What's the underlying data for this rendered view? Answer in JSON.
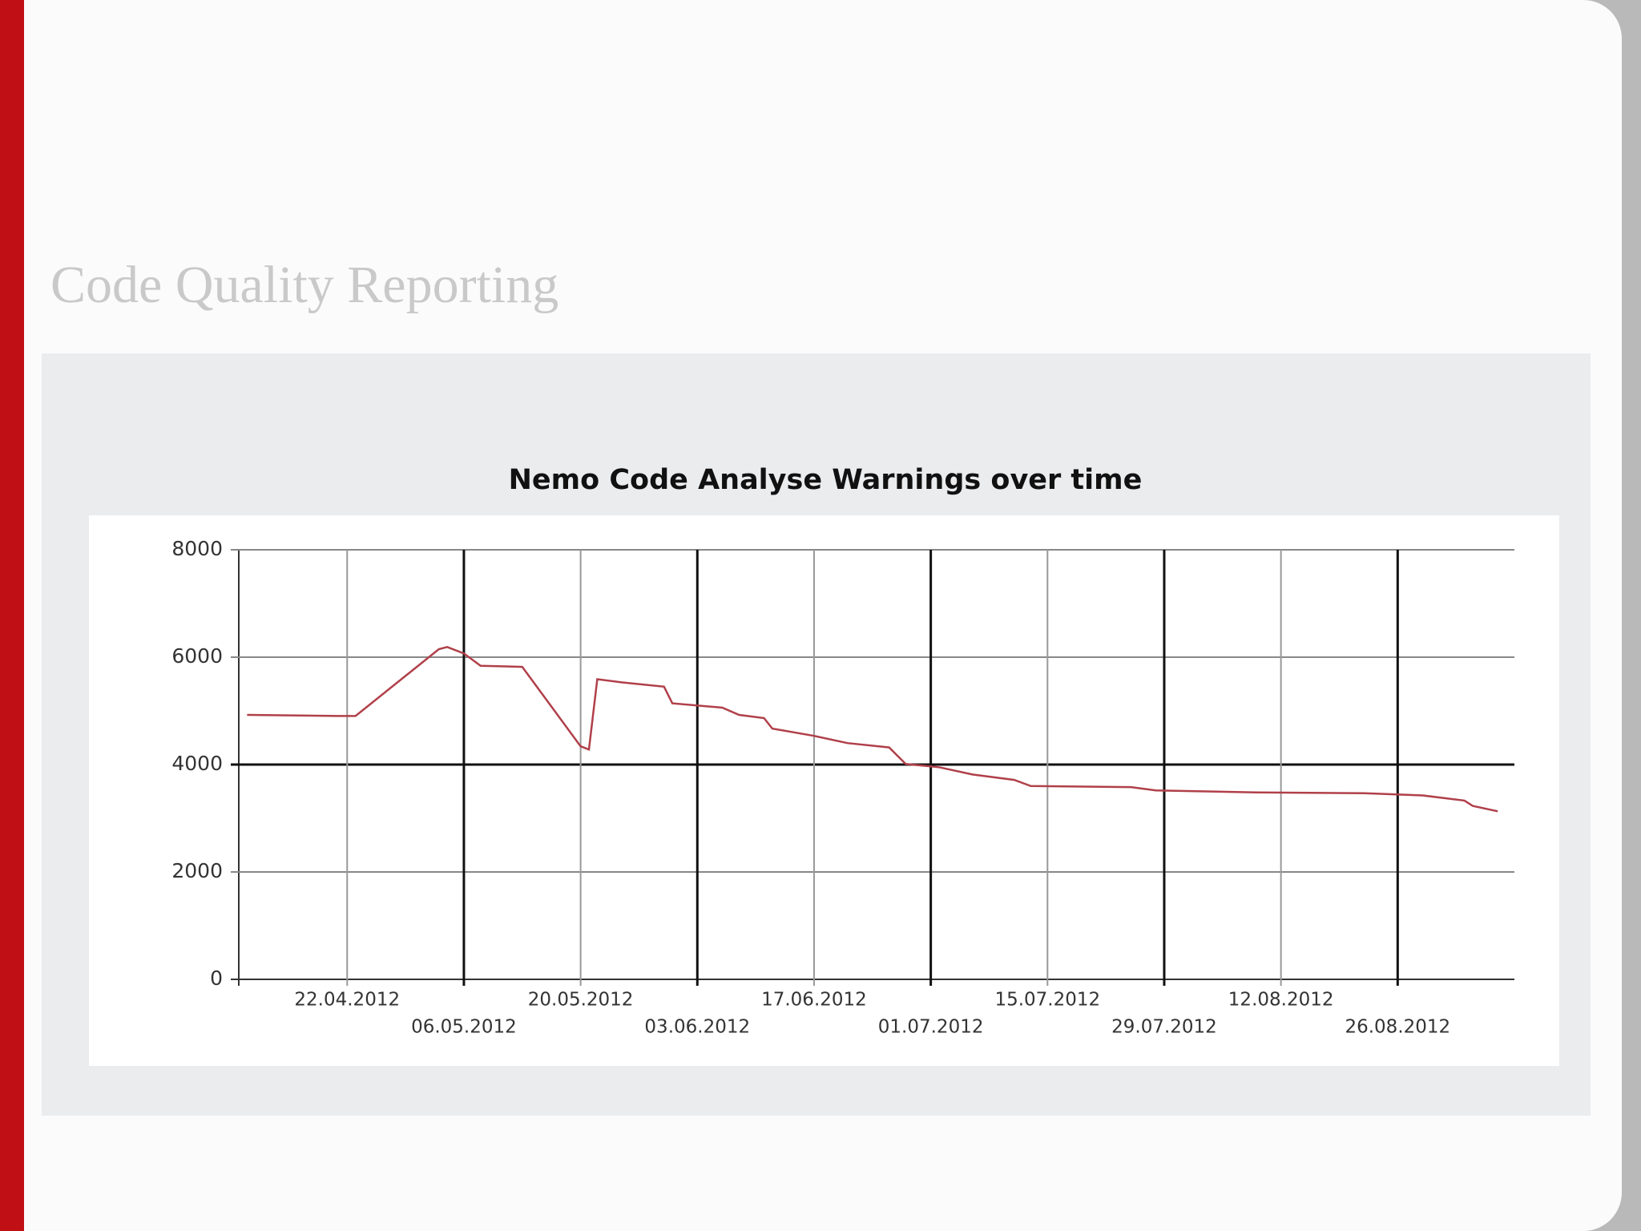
{
  "slide_title": "Code Quality Reporting",
  "chart_data": {
    "type": "line",
    "title": "Nemo Code Analyse Warnings over time",
    "x": [
      "10.04.2012",
      "21.04.2012",
      "23.04.2012",
      "03.05.2012",
      "04.05.2012",
      "06.05.2012",
      "08.05.2012",
      "13.05.2012",
      "20.05.2012",
      "21.05.2012",
      "22.05.2012",
      "25.05.2012",
      "30.05.2012",
      "31.05.2012",
      "06.06.2012",
      "08.06.2012",
      "11.06.2012",
      "12.06.2012",
      "17.06.2012",
      "21.06.2012",
      "26.06.2012",
      "28.06.2012",
      "02.07.2012",
      "06.07.2012",
      "11.07.2012",
      "13.07.2012",
      "25.07.2012",
      "28.07.2012",
      "09.08.2012",
      "22.08.2012",
      "29.08.2012",
      "03.09.2012",
      "04.09.2012",
      "07.09.2012"
    ],
    "series": [
      {
        "name": "Warnings",
        "color": "#b0404a",
        "values": [
          4925,
          4905,
          4905,
          6150,
          6190,
          6070,
          5840,
          5820,
          4340,
          4280,
          5590,
          5530,
          5450,
          5140,
          5060,
          4925,
          4865,
          4670,
          4535,
          4400,
          4320,
          4010,
          3950,
          3815,
          3715,
          3600,
          3580,
          3520,
          3480,
          3465,
          3425,
          3330,
          3230,
          3130
        ]
      }
    ],
    "xlim": [
      "09.04.2012",
      "09.09.2012"
    ],
    "xticks": [
      "22.04.2012",
      "06.05.2012",
      "20.05.2012",
      "03.06.2012",
      "17.06.2012",
      "01.07.2012",
      "15.07.2012",
      "29.07.2012",
      "12.08.2012",
      "26.08.2012"
    ],
    "ylim": [
      0,
      8000
    ],
    "yticks": [
      0,
      2000,
      4000,
      6000,
      8000
    ],
    "grid": true
  }
}
